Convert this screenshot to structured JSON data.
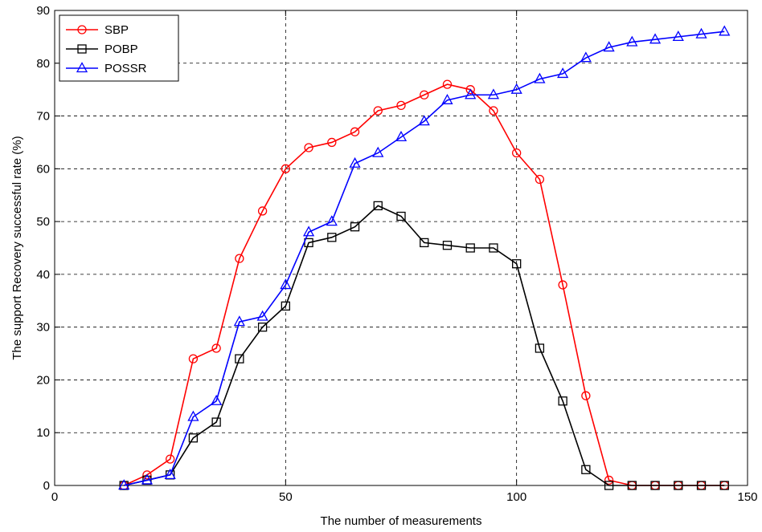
{
  "chart_data": {
    "type": "line",
    "title": "",
    "xlabel": "The number of measurements",
    "ylabel": "The support Recovery successful rate (%)",
    "xlim": [
      0,
      150
    ],
    "ylim": [
      0,
      90
    ],
    "xticks": [
      0,
      50,
      100,
      150
    ],
    "yticks": [
      0,
      10,
      20,
      30,
      40,
      50,
      60,
      70,
      80,
      90
    ],
    "grid": true,
    "legend_position": "top-left",
    "x": [
      15,
      20,
      25,
      30,
      35,
      40,
      45,
      50,
      55,
      60,
      65,
      70,
      75,
      80,
      85,
      90,
      95,
      100,
      105,
      110,
      115,
      120,
      125,
      130,
      135,
      140,
      145
    ],
    "series": [
      {
        "name": "SBP",
        "color": "#ff0000",
        "marker": "circle",
        "values": [
          0,
          2,
          5,
          24,
          26,
          43,
          52,
          60,
          64,
          65,
          67,
          71,
          72,
          74,
          76,
          75,
          71,
          63,
          58,
          38,
          17,
          1,
          0,
          0,
          0,
          0,
          0
        ]
      },
      {
        "name": "POBP",
        "color": "#000000",
        "marker": "square",
        "values": [
          0,
          1,
          2,
          9,
          12,
          24,
          30,
          34,
          46,
          47,
          49,
          53,
          51,
          46,
          45.5,
          45,
          45,
          42,
          26,
          16,
          3,
          0,
          0,
          0,
          0,
          0,
          0
        ]
      },
      {
        "name": "POSSR",
        "color": "#0000ff",
        "marker": "triangle",
        "values": [
          0,
          1,
          2,
          13,
          16,
          31,
          32,
          38,
          48,
          50,
          61,
          63,
          66,
          69,
          73,
          74,
          74,
          75,
          77,
          78,
          81,
          83,
          84,
          84.5,
          85,
          85.5,
          86
        ]
      }
    ]
  }
}
